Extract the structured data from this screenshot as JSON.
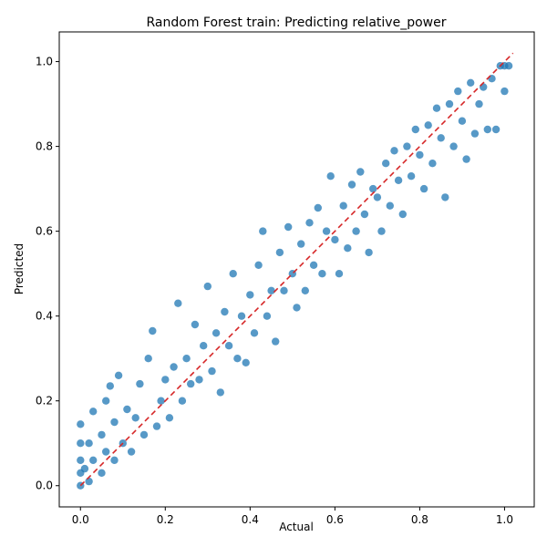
{
  "chart_data": {
    "type": "scatter",
    "title": "Random Forest train: Predicting relative_power",
    "xlabel": "Actual",
    "ylabel": "Predicted",
    "xlim": [
      -0.05,
      1.07
    ],
    "ylim": [
      -0.05,
      1.07
    ],
    "xticks": [
      "0.0",
      "0.2",
      "0.4",
      "0.6",
      "0.8",
      "1.0"
    ],
    "yticks": [
      "0.0",
      "0.2",
      "0.4",
      "0.6",
      "0.8",
      "1.0"
    ],
    "grid": false,
    "point_color": "#1f77b4",
    "reference_line": {
      "style": "dashed",
      "color": "#d62728",
      "x": [
        0.0,
        1.02
      ],
      "y": [
        0.0,
        1.02
      ]
    },
    "series": [
      {
        "points": [
          [
            0.0,
            0.0
          ],
          [
            0.0,
            0.03
          ],
          [
            0.0,
            0.06
          ],
          [
            0.0,
            0.1
          ],
          [
            0.0,
            0.145
          ],
          [
            0.01,
            0.04
          ],
          [
            0.02,
            0.01
          ],
          [
            0.02,
            0.1
          ],
          [
            0.03,
            0.06
          ],
          [
            0.03,
            0.175
          ],
          [
            0.05,
            0.03
          ],
          [
            0.05,
            0.12
          ],
          [
            0.06,
            0.08
          ],
          [
            0.06,
            0.2
          ],
          [
            0.07,
            0.235
          ],
          [
            0.08,
            0.06
          ],
          [
            0.08,
            0.15
          ],
          [
            0.09,
            0.26
          ],
          [
            0.1,
            0.1
          ],
          [
            0.11,
            0.18
          ],
          [
            0.12,
            0.08
          ],
          [
            0.13,
            0.16
          ],
          [
            0.14,
            0.24
          ],
          [
            0.15,
            0.12
          ],
          [
            0.16,
            0.3
          ],
          [
            0.17,
            0.365
          ],
          [
            0.18,
            0.14
          ],
          [
            0.19,
            0.2
          ],
          [
            0.2,
            0.25
          ],
          [
            0.21,
            0.16
          ],
          [
            0.22,
            0.28
          ],
          [
            0.23,
            0.43
          ],
          [
            0.24,
            0.2
          ],
          [
            0.25,
            0.3
          ],
          [
            0.26,
            0.24
          ],
          [
            0.27,
            0.38
          ],
          [
            0.28,
            0.25
          ],
          [
            0.29,
            0.33
          ],
          [
            0.3,
            0.47
          ],
          [
            0.31,
            0.27
          ],
          [
            0.32,
            0.36
          ],
          [
            0.33,
            0.22
          ],
          [
            0.34,
            0.41
          ],
          [
            0.35,
            0.33
          ],
          [
            0.36,
            0.5
          ],
          [
            0.37,
            0.3
          ],
          [
            0.38,
            0.4
          ],
          [
            0.39,
            0.29
          ],
          [
            0.4,
            0.45
          ],
          [
            0.41,
            0.36
          ],
          [
            0.42,
            0.52
          ],
          [
            0.43,
            0.6
          ],
          [
            0.44,
            0.4
          ],
          [
            0.45,
            0.46
          ],
          [
            0.46,
            0.34
          ],
          [
            0.47,
            0.55
          ],
          [
            0.48,
            0.46
          ],
          [
            0.49,
            0.61
          ],
          [
            0.5,
            0.5
          ],
          [
            0.51,
            0.42
          ],
          [
            0.52,
            0.57
          ],
          [
            0.53,
            0.46
          ],
          [
            0.54,
            0.62
          ],
          [
            0.55,
            0.52
          ],
          [
            0.56,
            0.655
          ],
          [
            0.57,
            0.5
          ],
          [
            0.58,
            0.6
          ],
          [
            0.59,
            0.73
          ],
          [
            0.6,
            0.58
          ],
          [
            0.61,
            0.5
          ],
          [
            0.62,
            0.66
          ],
          [
            0.63,
            0.56
          ],
          [
            0.64,
            0.71
          ],
          [
            0.65,
            0.6
          ],
          [
            0.66,
            0.74
          ],
          [
            0.67,
            0.64
          ],
          [
            0.68,
            0.55
          ],
          [
            0.69,
            0.7
          ],
          [
            0.7,
            0.68
          ],
          [
            0.71,
            0.6
          ],
          [
            0.72,
            0.76
          ],
          [
            0.73,
            0.66
          ],
          [
            0.74,
            0.79
          ],
          [
            0.75,
            0.72
          ],
          [
            0.76,
            0.64
          ],
          [
            0.77,
            0.8
          ],
          [
            0.78,
            0.73
          ],
          [
            0.79,
            0.84
          ],
          [
            0.8,
            0.78
          ],
          [
            0.81,
            0.7
          ],
          [
            0.82,
            0.85
          ],
          [
            0.83,
            0.76
          ],
          [
            0.84,
            0.89
          ],
          [
            0.85,
            0.82
          ],
          [
            0.86,
            0.68
          ],
          [
            0.87,
            0.9
          ],
          [
            0.88,
            0.8
          ],
          [
            0.89,
            0.93
          ],
          [
            0.9,
            0.86
          ],
          [
            0.91,
            0.77
          ],
          [
            0.92,
            0.95
          ],
          [
            0.93,
            0.83
          ],
          [
            0.94,
            0.9
          ],
          [
            0.95,
            0.94
          ],
          [
            0.96,
            0.84
          ],
          [
            0.97,
            0.96
          ],
          [
            0.98,
            0.84
          ],
          [
            0.99,
            0.99
          ],
          [
            1.0,
            0.93
          ],
          [
            1.0,
            0.99
          ],
          [
            1.01,
            0.99
          ]
        ]
      }
    ]
  }
}
